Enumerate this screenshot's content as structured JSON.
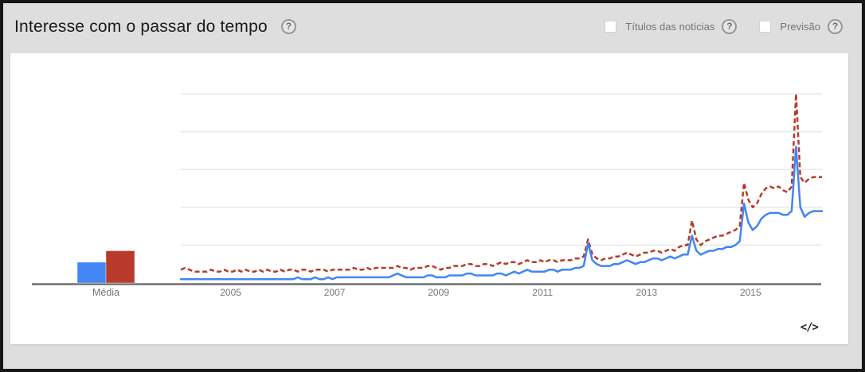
{
  "header": {
    "title": "Interesse com o passar do tempo",
    "help_icon": "?",
    "checkboxes": [
      {
        "label": "Títulos das notícias",
        "checked": false,
        "help_icon": "?"
      },
      {
        "label": "Previsão",
        "checked": false,
        "help_icon": "?"
      }
    ]
  },
  "footer": {
    "embed_icon": "</>"
  },
  "colors": {
    "series1": "#4285f4",
    "series2": "#b93a2a",
    "grid": "#e9e9e9",
    "axis": "#6f6f6f",
    "label": "#757575",
    "background": "#dedede",
    "card": "#ffffff"
  },
  "chart_data": {
    "type": "line",
    "title": "Interesse com o passar do tempo",
    "xlabel": "",
    "ylabel": "",
    "x_start": {
      "year": 2004,
      "month": 1
    },
    "x_end": {
      "year": 2016,
      "month": 5
    },
    "x_tick_labels": [
      "2005",
      "2007",
      "2009",
      "2011",
      "2013",
      "2015"
    ],
    "ylim": [
      0,
      100
    ],
    "gridlines": [
      20,
      40,
      60,
      80,
      100
    ],
    "grid": true,
    "legend_position": "none",
    "average_bars": {
      "label": "Média",
      "series": [
        {
          "name": "term-1-blue",
          "value": 11
        },
        {
          "name": "term-2-red",
          "value": 17
        }
      ]
    },
    "series": [
      {
        "name": "term-1-blue",
        "style": "solid",
        "color": "#4285f4",
        "values": [
          2,
          2,
          2,
          2,
          2,
          2,
          2,
          2,
          2,
          2,
          2,
          2,
          2,
          2,
          2,
          2,
          2,
          2,
          2,
          2,
          2,
          2,
          2,
          2,
          2,
          2,
          2,
          3,
          2,
          2,
          2,
          3,
          2,
          2,
          3,
          2,
          3,
          3,
          3,
          3,
          3,
          3,
          3,
          3,
          3,
          3,
          3,
          3,
          3,
          4,
          5,
          4,
          3,
          3,
          3,
          3,
          3,
          4,
          4,
          3,
          3,
          3,
          4,
          4,
          4,
          4,
          5,
          5,
          4,
          4,
          4,
          4,
          4,
          5,
          5,
          4,
          5,
          6,
          5,
          6,
          7,
          6,
          6,
          6,
          6,
          7,
          7,
          6,
          7,
          7,
          7,
          8,
          8,
          9,
          21,
          12,
          10,
          9,
          9,
          9,
          10,
          10,
          11,
          12,
          11,
          10,
          11,
          11,
          12,
          13,
          13,
          12,
          13,
          14,
          13,
          14,
          15,
          15,
          25,
          17,
          15,
          16,
          17,
          17,
          18,
          18,
          19,
          19,
          20,
          22,
          42,
          32,
          28,
          30,
          34,
          36,
          37,
          37,
          37,
          36,
          36,
          38,
          72,
          40,
          35,
          37,
          38,
          38,
          38
        ]
      },
      {
        "name": "term-2-red",
        "style": "dashed",
        "color": "#b93a2a",
        "values": [
          7,
          8,
          7,
          6,
          6,
          6,
          6,
          7,
          6,
          6,
          7,
          6,
          6,
          7,
          6,
          7,
          6,
          6,
          7,
          6,
          7,
          6,
          6,
          7,
          6,
          7,
          7,
          6,
          7,
          7,
          6,
          7,
          7,
          7,
          6,
          7,
          7,
          7,
          7,
          7,
          8,
          7,
          7,
          8,
          7,
          8,
          8,
          8,
          8,
          8,
          9,
          8,
          8,
          7,
          8,
          8,
          8,
          9,
          9,
          8,
          7,
          8,
          8,
          9,
          9,
          9,
          10,
          10,
          9,
          9,
          10,
          10,
          9,
          10,
          11,
          10,
          11,
          11,
          10,
          11,
          12,
          11,
          11,
          12,
          11,
          12,
          12,
          11,
          12,
          12,
          12,
          13,
          13,
          14,
          23,
          15,
          13,
          12,
          13,
          13,
          14,
          14,
          15,
          16,
          15,
          14,
          15,
          16,
          16,
          17,
          17,
          16,
          17,
          18,
          17,
          19,
          20,
          20,
          33,
          23,
          20,
          22,
          23,
          24,
          25,
          25,
          26,
          27,
          28,
          30,
          53,
          44,
          40,
          42,
          47,
          50,
          51,
          50,
          51,
          49,
          48,
          51,
          100,
          56,
          53,
          55,
          56,
          56,
          56
        ]
      }
    ]
  }
}
